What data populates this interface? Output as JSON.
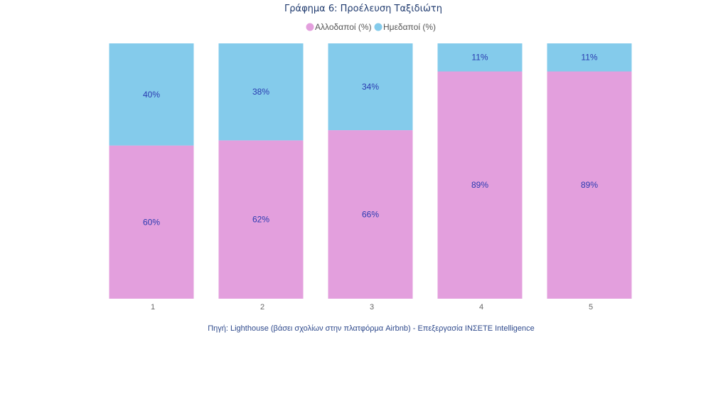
{
  "chart_data": {
    "type": "bar",
    "stacked": true,
    "title": "Γράφημα 6: Προέλευση Ταξιδιώτη",
    "xlabel": "",
    "ylabel": "",
    "categories": [
      "1",
      "2",
      "3",
      "4",
      "5"
    ],
    "series": [
      {
        "name": "Αλλοδαποί (%)",
        "color": "#e39fdd",
        "values": [
          60,
          62,
          66,
          89,
          89
        ],
        "labels": [
          "60%",
          "62%",
          "66%",
          "89%",
          "89%"
        ]
      },
      {
        "name": "Ημεδαποί (%)",
        "color": "#84cbeb",
        "values": [
          40,
          38,
          34,
          11,
          11
        ],
        "labels": [
          "40%",
          "38%",
          "34%",
          "11%",
          "11%"
        ]
      }
    ],
    "ylim": [
      0,
      100
    ],
    "grid": false,
    "legend_position": "top-center",
    "source": "Πηγή: Lighthouse (βάσει σχολίων στην πλατφόρμα Airbnb) - Επεξεργασία ΙΝΣΕΤΕ Intelligence"
  }
}
